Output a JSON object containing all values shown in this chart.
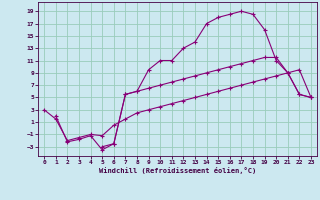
{
  "xlabel": "Windchill (Refroidissement éolien,°C)",
  "bg_color": "#cce8f0",
  "line_color": "#880077",
  "grid_color": "#99ccbb",
  "xlim": [
    -0.5,
    23.5
  ],
  "ylim": [
    -4.5,
    20.5
  ],
  "xticks": [
    0,
    1,
    2,
    3,
    4,
    5,
    6,
    7,
    8,
    9,
    10,
    11,
    12,
    13,
    14,
    15,
    16,
    17,
    18,
    19,
    20,
    21,
    22,
    23
  ],
  "yticks": [
    -3,
    -1,
    1,
    3,
    5,
    7,
    9,
    11,
    13,
    15,
    17,
    19
  ],
  "curve1_x": [
    0,
    1,
    2,
    3,
    4,
    5,
    6,
    7,
    8,
    9,
    10,
    11,
    12,
    13,
    14,
    15,
    16,
    17,
    18,
    19,
    20,
    21,
    22,
    23
  ],
  "curve1_y": [
    3,
    1.5,
    -2,
    -1.5,
    -1.0,
    -1.2,
    0.5,
    1.5,
    2.5,
    3.0,
    3.5,
    4.0,
    4.5,
    5.0,
    5.5,
    6.0,
    6.5,
    7.0,
    7.5,
    8.0,
    8.5,
    9.0,
    9.5,
    5.0
  ],
  "curve2_x": [
    1,
    2,
    3,
    4,
    5,
    6,
    7,
    8,
    9,
    10,
    11,
    12,
    13,
    14,
    15,
    16,
    17,
    18,
    19,
    20,
    21,
    22,
    23
  ],
  "curve2_y": [
    2,
    -2.2,
    -1.8,
    -1.2,
    -3.5,
    -2.5,
    5.5,
    6.0,
    9.5,
    11.0,
    11.0,
    13.0,
    14.0,
    17.0,
    18.0,
    18.5,
    19.0,
    18.5,
    16.0,
    11.0,
    9.0,
    5.5,
    5.0
  ],
  "curve3_x": [
    5,
    6,
    7,
    8,
    9,
    10,
    11,
    12,
    13,
    14,
    15,
    16,
    17,
    18,
    19,
    20,
    21,
    22,
    23
  ],
  "curve3_y": [
    -3.0,
    -2.5,
    5.5,
    6.0,
    6.5,
    7.0,
    7.5,
    8.0,
    8.5,
    9.0,
    9.5,
    10.0,
    10.5,
    11.0,
    11.5,
    11.5,
    9.0,
    5.5,
    5.0
  ]
}
